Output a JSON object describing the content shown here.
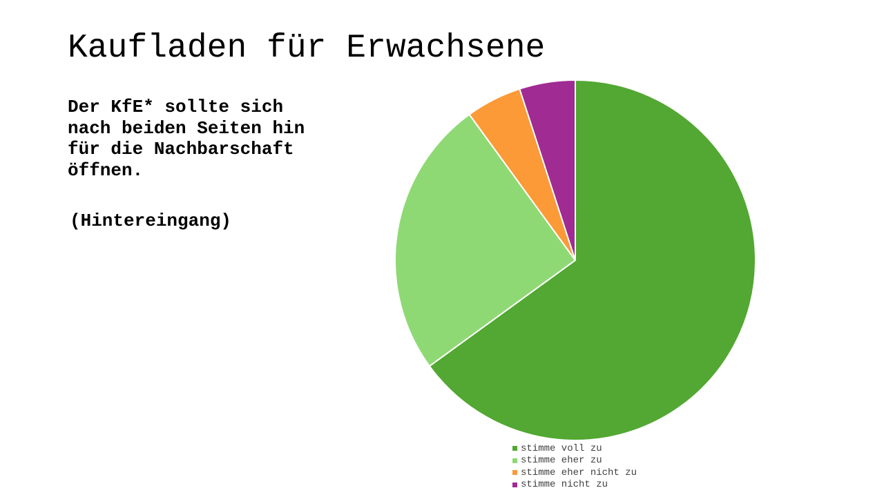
{
  "slide": {
    "title": "Kaufladen für Erwachsene",
    "statement": "Der KfE* sollte sich nach beiden Seiten hin für die Nachbarschaft öffnen.",
    "statement_note": "(Hintereingang)"
  },
  "chart_data": {
    "type": "pie",
    "title": "",
    "categories": [
      "stimme voll zu",
      "stimme eher zu",
      "stimme eher nicht zu",
      "stimme nicht zu"
    ],
    "values": [
      65,
      25,
      5,
      5
    ],
    "colors": [
      "#52a832",
      "#8fd975",
      "#fb9a37",
      "#a02b93"
    ],
    "start_angle": "12 o'clock",
    "direction": "clockwise",
    "legend_position": "bottom"
  }
}
